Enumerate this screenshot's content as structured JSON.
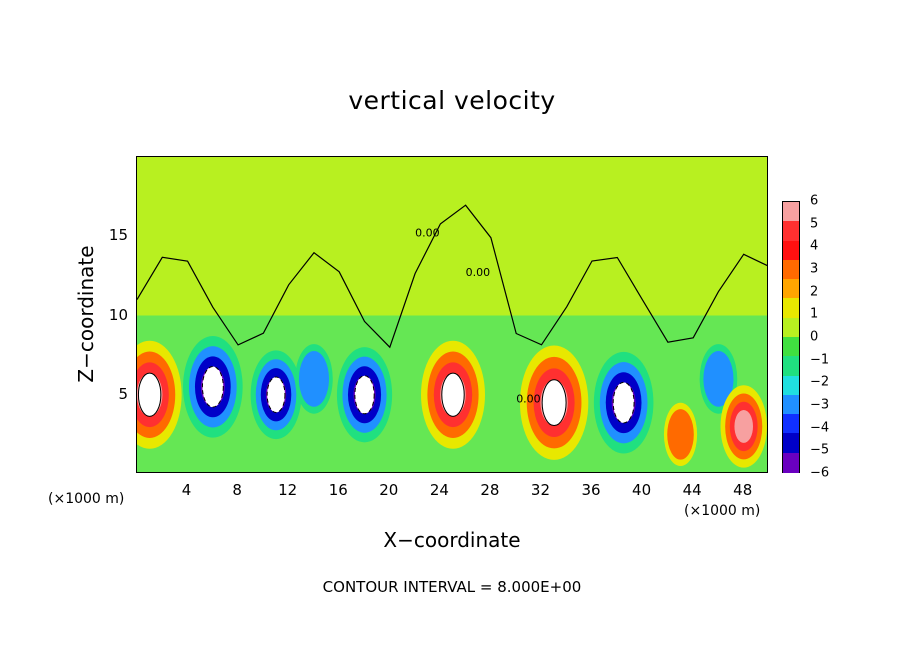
{
  "chart_data": {
    "type": "heatmap",
    "title": "vertical velocity",
    "xlabel": "X−coordinate",
    "ylabel": "Z−coordinate",
    "x_unit": "(×1000 m)",
    "x_ticks": [
      "4",
      "8",
      "12",
      "16",
      "20",
      "24",
      "28",
      "32",
      "36",
      "40",
      "44",
      "48"
    ],
    "x_tick_values": [
      4,
      8,
      12,
      16,
      20,
      24,
      28,
      32,
      36,
      40,
      44,
      48
    ],
    "xlim": [
      0,
      50
    ],
    "y_ticks": [
      "5",
      "10",
      "15"
    ],
    "y_tick_values": [
      5,
      10,
      15
    ],
    "ylim": [
      0,
      20
    ],
    "colorbar": {
      "ticks": [
        "6",
        "5",
        "4",
        "3",
        "2",
        "1",
        "0",
        "−1",
        "−2",
        "−3",
        "−4",
        "−5",
        "−6"
      ],
      "range": [
        -6,
        6
      ],
      "colors": [
        "#f7a0a0",
        "#ff3030",
        "#ff1010",
        "#ff6a00",
        "#ffa500",
        "#e8e800",
        "#b8f020",
        "#40e040",
        "#20e080",
        "#20e0e0",
        "#2090ff",
        "#1030ff",
        "#0000c8",
        "#6a00c0"
      ]
    },
    "contour_interval_text": "CONTOUR INTERVAL = 8.000E+00",
    "contour_labels": [
      "0.00",
      "0.00",
      "0.00"
    ],
    "features": [
      {
        "x": 1,
        "z": 5,
        "w": 10
      },
      {
        "x": 6,
        "z": 5.5,
        "w": -9
      },
      {
        "x": 11,
        "z": 5,
        "w": -7
      },
      {
        "x": 14,
        "z": 6,
        "w": -4
      },
      {
        "x": 18,
        "z": 5,
        "w": -8
      },
      {
        "x": 25,
        "z": 5,
        "w": 10
      },
      {
        "x": 33,
        "z": 4.5,
        "w": 11
      },
      {
        "x": 38.5,
        "z": 4.5,
        "w": -9
      },
      {
        "x": 46,
        "z": 6,
        "w": -4
      },
      {
        "x": 48,
        "z": 3,
        "w": 6
      },
      {
        "x": 43,
        "z": 2.5,
        "w": 3
      }
    ]
  }
}
